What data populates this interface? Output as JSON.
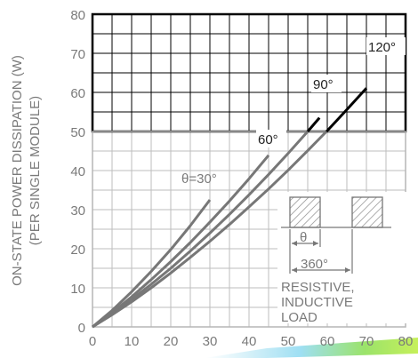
{
  "chart_data": {
    "type": "line",
    "title": "",
    "xlabel": "",
    "ylabel": "ON-STATE POWER DISSIPATION (W)",
    "ylabel2": "(PER SINGLE MODULE)",
    "xlim": [
      0,
      80
    ],
    "ylim": [
      0,
      80
    ],
    "x_ticks": [
      "0",
      "10",
      "20",
      "30",
      "40",
      "50",
      "60",
      "70",
      "80"
    ],
    "y_ticks": [
      "0",
      "10",
      "20",
      "30",
      "40",
      "50",
      "60",
      "70",
      "80"
    ],
    "grid": true,
    "series": [
      {
        "name": "θ=30°",
        "color": "#777777",
        "x": [
          0,
          5,
          10,
          15,
          20,
          25,
          30
        ],
        "y": [
          0,
          4.2,
          9.0,
          14.2,
          19.8,
          25.9,
          32.5
        ]
      },
      {
        "name": "60°",
        "color": "#777777",
        "x": [
          0,
          5,
          10,
          15,
          20,
          25,
          30,
          35,
          40,
          45
        ],
        "y": [
          0,
          3.6,
          7.7,
          12.1,
          16.7,
          21.6,
          26.8,
          32.2,
          37.9,
          43.9
        ]
      },
      {
        "name": "90°",
        "color": "#777777",
        "x": [
          0,
          5,
          10,
          15,
          20,
          25,
          30,
          35,
          40,
          45,
          50,
          55,
          58
        ],
        "y": [
          0,
          3.3,
          7.0,
          10.9,
          15.0,
          19.4,
          24.0,
          28.8,
          33.8,
          39.0,
          44.4,
          50.0,
          53.5
        ]
      },
      {
        "name": "120°",
        "color": "#777777",
        "x": [
          0,
          5,
          10,
          15,
          20,
          25,
          30,
          35,
          40,
          45,
          50,
          55,
          60,
          65,
          70
        ],
        "y": [
          0,
          3.1,
          6.4,
          10.0,
          13.8,
          17.8,
          21.9,
          26.2,
          30.7,
          35.3,
          40.1,
          45.1,
          50.2,
          55.6,
          61.1
        ]
      }
    ],
    "series_labels": {
      "s30": "θ=30°",
      "s60": "60°",
      "s90": "90°",
      "s120": "120°"
    },
    "inset": {
      "theta_label": "θ",
      "period_label": "360°",
      "load_line1": "RESISTIVE,",
      "load_line2": "INDUCTIVE",
      "load_line3": "LOAD"
    }
  }
}
